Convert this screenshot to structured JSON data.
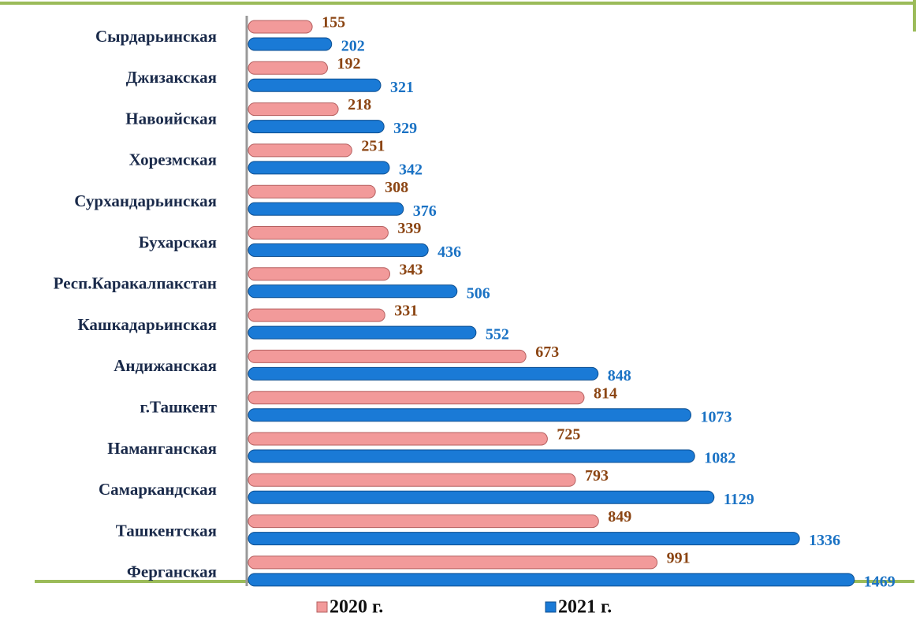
{
  "chart_data": {
    "type": "barh",
    "categories": [
      "Сырдарьинская",
      "Джизакская",
      "Навоийская",
      "Хорезмская",
      "Сурхандарьинская",
      "Бухарская",
      "Респ.Каракалпакстан",
      "Кашкадарьинская",
      "Андижанская",
      "г.Ташкент",
      "Наманганская",
      "Самаркандская",
      "Ташкентская",
      "Ферганская"
    ],
    "series": [
      {
        "name": "2020 г.",
        "color": "#f29a9a",
        "label_color": "#8b4513",
        "values": [
          155,
          192,
          218,
          251,
          308,
          339,
          343,
          331,
          673,
          814,
          725,
          793,
          849,
          991
        ]
      },
      {
        "name": "2021 г.",
        "color": "#1a7ad6",
        "label_color": "#1a72c4",
        "values": [
          202,
          321,
          329,
          342,
          376,
          436,
          506,
          552,
          848,
          1073,
          1082,
          1129,
          1336,
          1469
        ]
      }
    ],
    "xlim": [
      0,
      1500
    ]
  }
}
